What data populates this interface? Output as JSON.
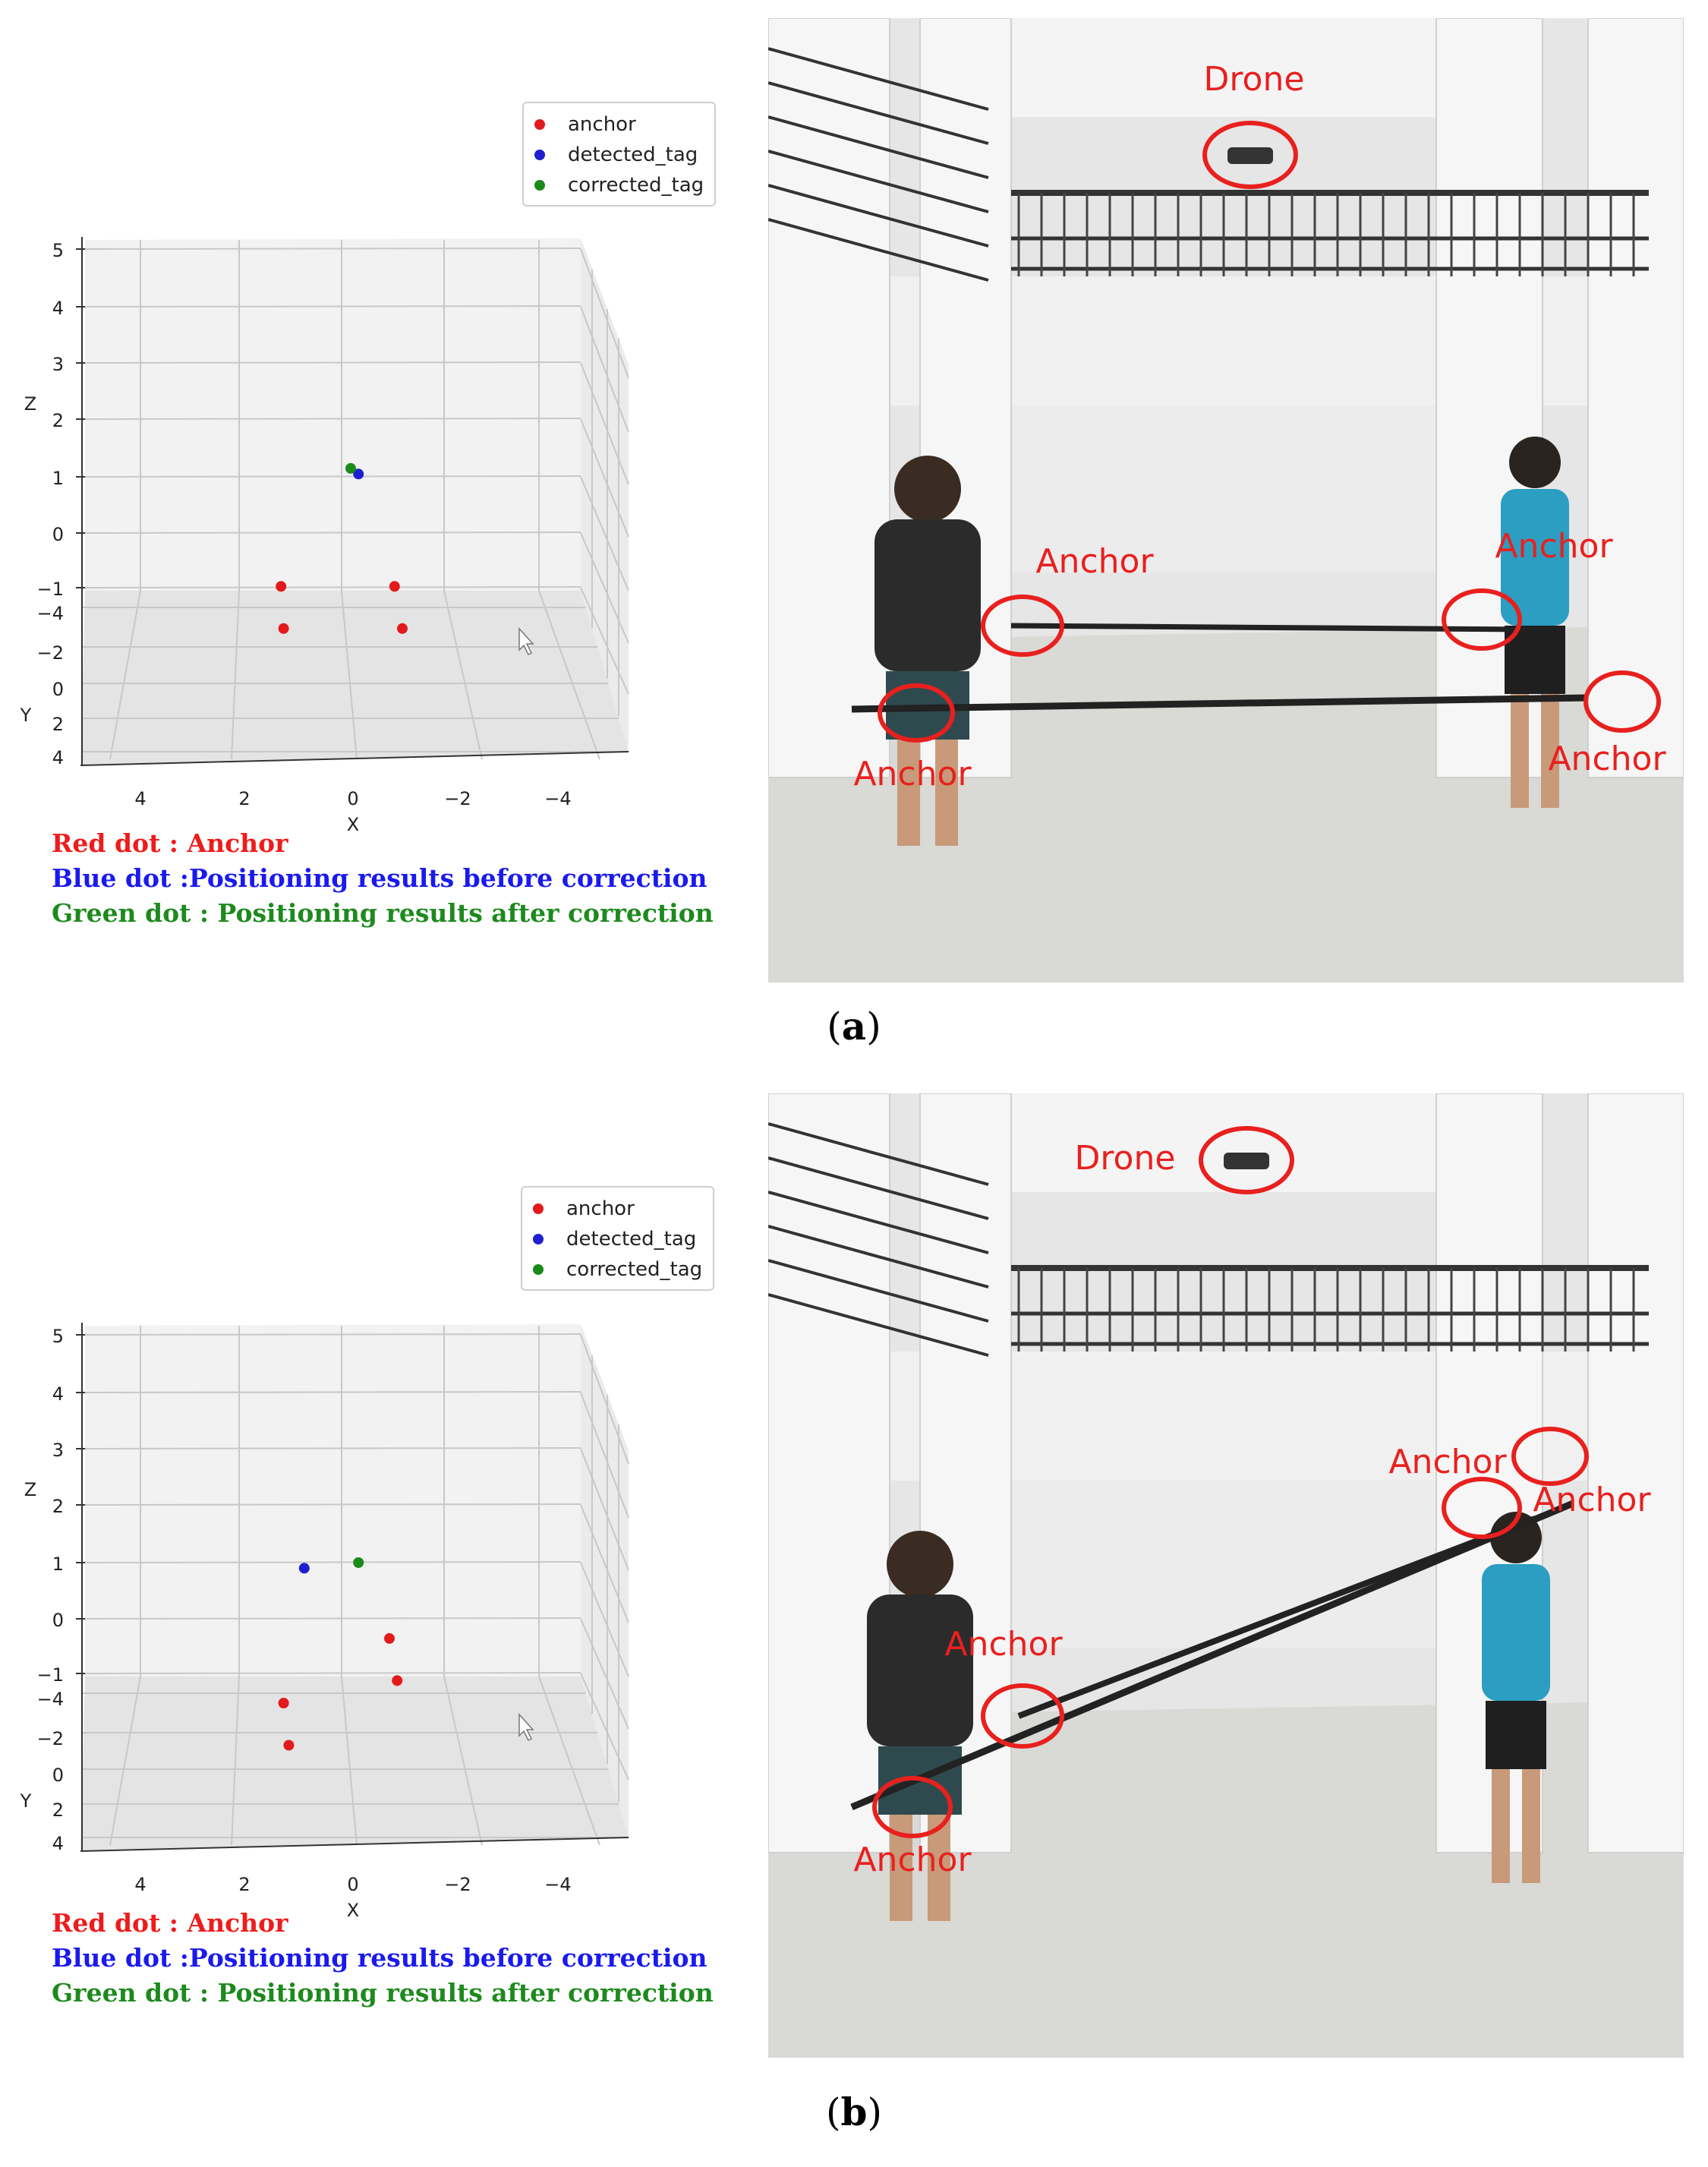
{
  "panels": [
    {
      "label_letter": "a",
      "legend": [
        {
          "name": "anchor",
          "color": "#e31a1c"
        },
        {
          "name": "detected_tag",
          "color": "#1f1fcf"
        },
        {
          "name": "corrected_tag",
          "color": "#1a8a1a"
        }
      ],
      "captions": {
        "red": "Red dot : Anchor",
        "blue": "Blue dot :Positioning results before correction",
        "green": "Green dot : Positioning results after correction"
      },
      "photo_labels": {
        "drone": "Drone",
        "anchor": "Anchor"
      }
    },
    {
      "label_letter": "b",
      "legend": [
        {
          "name": "anchor",
          "color": "#e31a1c"
        },
        {
          "name": "detected_tag",
          "color": "#1f1fcf"
        },
        {
          "name": "corrected_tag",
          "color": "#1a8a1a"
        }
      ],
      "captions": {
        "red": "Red dot : Anchor",
        "blue": "Blue dot :Positioning results before correction",
        "green": "Green dot : Positioning results after correction"
      },
      "photo_labels": {
        "drone": "Drone",
        "anchor": "Anchor"
      }
    }
  ],
  "chart_data": [
    {
      "type": "scatter",
      "projection": "3d",
      "xlabel": "X",
      "ylabel": "Y",
      "zlabel": "Z",
      "x_ticks": [
        "4",
        "2",
        "0",
        "−2",
        "−4"
      ],
      "y_ticks": [
        "−4",
        "−2",
        "0",
        "2",
        "4"
      ],
      "z_ticks": [
        "5",
        "4",
        "3",
        "2",
        "1",
        "0",
        "−1"
      ],
      "series": [
        {
          "name": "anchor",
          "color": "#e31a1c",
          "points": [
            [
              1.35,
              0,
              -0.95
            ],
            [
              -0.85,
              0,
              -0.95
            ],
            [
              1.3,
              0,
              -1.7
            ],
            [
              -1.0,
              0,
              -1.7
            ]
          ]
        },
        {
          "name": "detected_tag",
          "color": "#1f1fcf",
          "points": [
            [
              -0.15,
              0,
              1.05
            ]
          ]
        },
        {
          "name": "corrected_tag",
          "color": "#1a8a1a",
          "points": [
            [
              0.0,
              0,
              1.15
            ]
          ]
        }
      ]
    },
    {
      "type": "scatter",
      "projection": "3d",
      "xlabel": "X",
      "ylabel": "Y",
      "zlabel": "Z",
      "x_ticks": [
        "4",
        "2",
        "0",
        "−2",
        "−4"
      ],
      "y_ticks": [
        "−4",
        "−2",
        "0",
        "2",
        "4"
      ],
      "z_ticks": [
        "5",
        "4",
        "3",
        "2",
        "1",
        "0",
        "−1"
      ],
      "series": [
        {
          "name": "anchor",
          "color": "#e31a1c",
          "points": [
            [
              -0.75,
              0,
              -0.35
            ],
            [
              -0.9,
              0,
              -1.1
            ],
            [
              1.3,
              0,
              -1.5
            ],
            [
              1.2,
              0,
              -2.25
            ]
          ]
        },
        {
          "name": "detected_tag",
          "color": "#1f1fcf",
          "points": [
            [
              0.9,
              0,
              0.9
            ]
          ]
        },
        {
          "name": "corrected_tag",
          "color": "#1a8a1a",
          "points": [
            [
              -0.15,
              0,
              1.0
            ]
          ]
        }
      ]
    }
  ]
}
